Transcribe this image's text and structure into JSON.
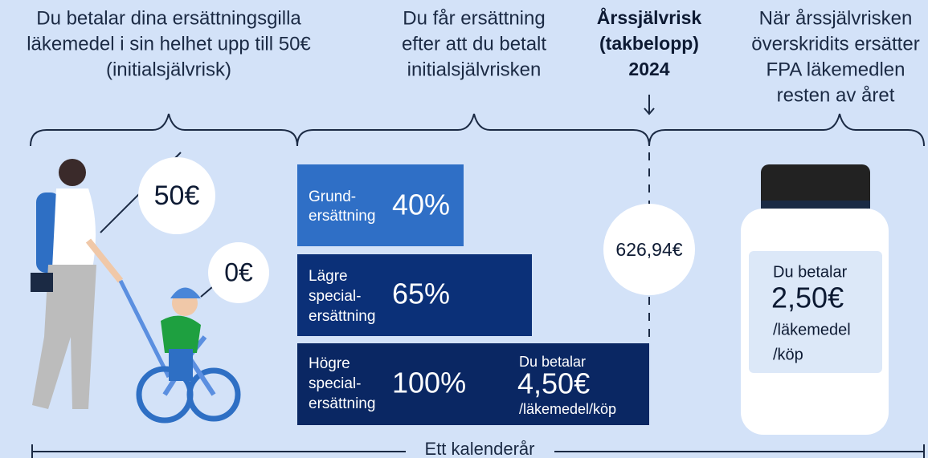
{
  "columns": [
    {
      "lines": [
        "Du betalar dina ersättningsgilla",
        "läkemedel i sin helhet upp till 50€",
        "(initialsjälvrisk)"
      ]
    },
    {
      "lines": [
        "Du får ersättning",
        "efter att du betalt",
        "initialsjälvrisken"
      ]
    },
    {
      "lines": [
        "Årssjälvrisk",
        "(takbelopp)",
        "2024"
      ]
    },
    {
      "lines": [
        "När årssjälvrisken",
        "överskridits ersätter",
        "FPA läkemedlen",
        "resten av året"
      ]
    }
  ],
  "bubbles": [
    "50€",
    "0€"
  ],
  "bars": [
    {
      "lines": [
        "Grund-",
        "ersättning"
      ],
      "percent": "40%"
    },
    {
      "lines": [
        "Lägre",
        "special-",
        "ersättning"
      ],
      "percent": "65%"
    },
    {
      "lines": [
        "Högre",
        "special-",
        "ersättning"
      ],
      "percent": "100%"
    }
  ],
  "payment": {
    "label": "Du betalar",
    "amount": "4,50€",
    "unit": "/läkemedel/köp"
  },
  "threshold": "626,94€",
  "bottle": {
    "label": "Du betalar",
    "amount": "2,50€",
    "unit_lines": [
      "/läkemedel",
      "/köp"
    ]
  },
  "footer": "Ett kalenderår"
}
